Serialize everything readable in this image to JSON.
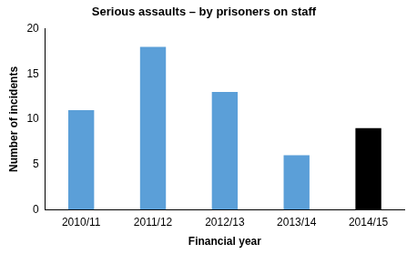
{
  "chart_data": {
    "type": "bar",
    "title": "Serious assaults – by prisoners on staff",
    "x_label": "Financial year",
    "y_label": "Number of incidents",
    "categories": [
      "2010/11",
      "2011/12",
      "2012/13",
      "2013/14",
      "2014/15"
    ],
    "values": [
      11,
      18,
      13,
      6,
      9
    ],
    "colors": [
      "#5b9fd8",
      "#5b9fd8",
      "#5b9fd8",
      "#5b9fd8",
      "#000000"
    ],
    "ylim": [
      0,
      20
    ],
    "yticks": [
      0,
      5,
      10,
      15,
      20
    ],
    "grid": false
  }
}
